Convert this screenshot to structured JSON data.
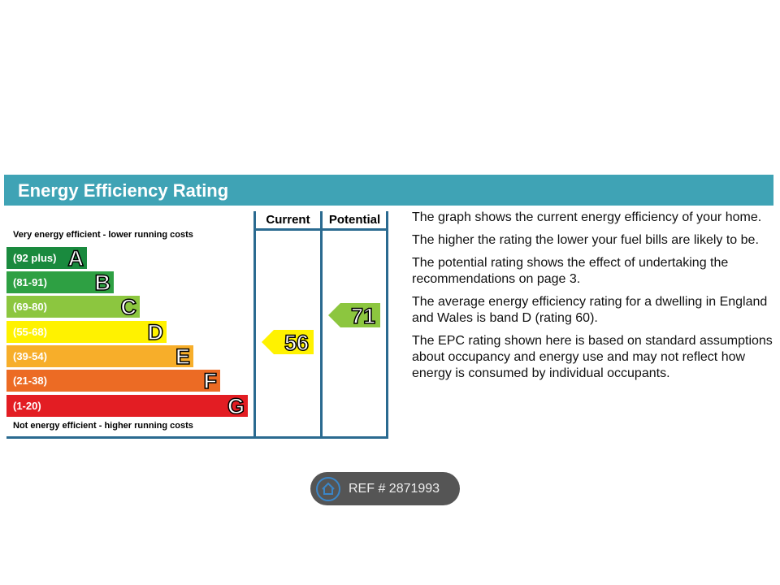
{
  "header": {
    "title": "Energy Efficiency Rating"
  },
  "columns": {
    "current": "Current",
    "potential": "Potential"
  },
  "top_note": "Very energy efficient - lower running costs",
  "bottom_note": "Not energy efficient - higher running costs",
  "bands": [
    {
      "range": "(92 plus)",
      "letter": "A"
    },
    {
      "range": "(81-91)",
      "letter": "B"
    },
    {
      "range": "(69-80)",
      "letter": "C"
    },
    {
      "range": "(55-68)",
      "letter": "D"
    },
    {
      "range": "(39-54)",
      "letter": "E"
    },
    {
      "range": "(21-38)",
      "letter": "F"
    },
    {
      "range": "(1-20)",
      "letter": "G"
    }
  ],
  "current": 56,
  "potential": 71,
  "paragraphs": [
    "The graph shows the current energy efficiency of your home.",
    "The higher the rating the lower your fuel bills are likely to be.",
    "The potential rating shows the effect of undertaking the recommendations on page 3.",
    "The average energy efficiency rating for a dwelling in England and Wales is band D (rating 60).",
    "The EPC rating shown here is based on standard assumptions about occupancy and energy use and may not reflect how energy is consumed by individual occupants."
  ],
  "ref": "REF # 2871993"
}
